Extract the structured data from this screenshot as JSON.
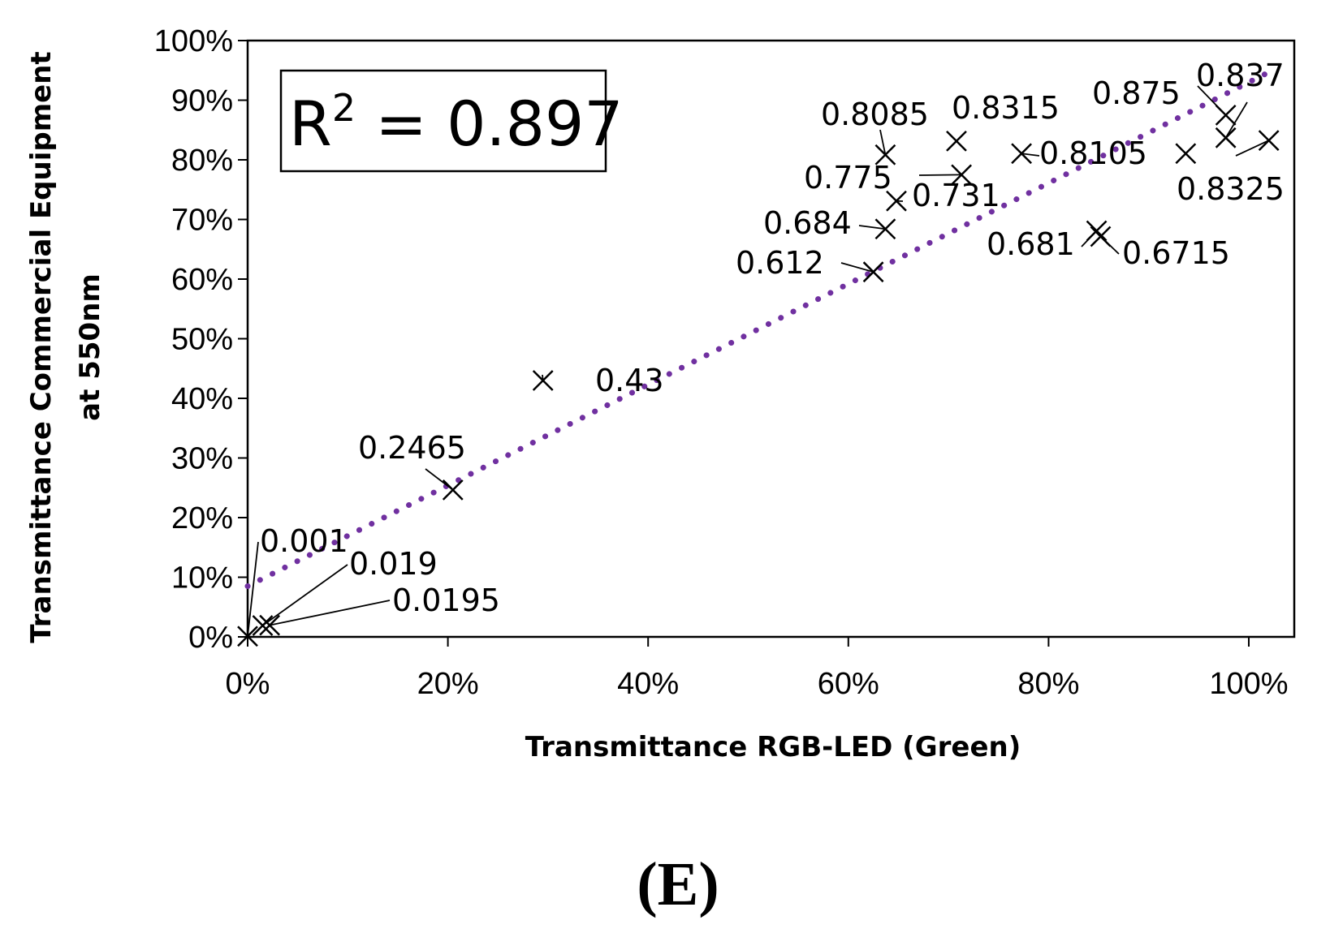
{
  "chart_data": {
    "type": "scatter",
    "xlabel": "Transmittance RGB-LED (Green)",
    "ylabel": [
      "Transmittance Commercial Equipment",
      "at 550nm"
    ],
    "xlim": [
      0,
      1.05
    ],
    "ylim": [
      0,
      1.0
    ],
    "xticks": [
      {
        "value": 0,
        "label": "0%"
      },
      {
        "value": 0.2,
        "label": "20%"
      },
      {
        "value": 0.4,
        "label": "40%"
      },
      {
        "value": 0.6,
        "label": "60%"
      },
      {
        "value": 0.8,
        "label": "80%"
      },
      {
        "value": 1.0,
        "label": "100%"
      }
    ],
    "yticks": [
      {
        "value": 0,
        "label": "0%"
      },
      {
        "value": 0.1,
        "label": "10%"
      },
      {
        "value": 0.2,
        "label": "20%"
      },
      {
        "value": 0.3,
        "label": "30%"
      },
      {
        "value": 0.4,
        "label": "40%"
      },
      {
        "value": 0.5,
        "label": "50%"
      },
      {
        "value": 0.6,
        "label": "60%"
      },
      {
        "value": 0.7,
        "label": "70%"
      },
      {
        "value": 0.8,
        "label": "80%"
      },
      {
        "value": 0.9,
        "label": "90%"
      },
      {
        "value": 1.0,
        "label": "100%"
      }
    ],
    "grid": false,
    "marker": "x",
    "points": [
      {
        "x": 0.0,
        "y": 0.001,
        "label": "0.001"
      },
      {
        "x": 0.015,
        "y": 0.019,
        "label": "0.019"
      },
      {
        "x": 0.022,
        "y": 0.0195,
        "label": "0.0195"
      },
      {
        "x": 0.205,
        "y": 0.2465,
        "label": "0.2465"
      },
      {
        "x": 0.295,
        "y": 0.43,
        "label": "0.43"
      },
      {
        "x": 0.625,
        "y": 0.612,
        "label": "0.612"
      },
      {
        "x": 0.637,
        "y": 0.684,
        "label": "0.684"
      },
      {
        "x": 0.637,
        "y": 0.8085,
        "label": "0.8085"
      },
      {
        "x": 0.648,
        "y": 0.731,
        "label": "0.731"
      },
      {
        "x": 0.708,
        "y": 0.8315,
        "label": "0.8315"
      },
      {
        "x": 0.713,
        "y": 0.775,
        "label": "0.775"
      },
      {
        "x": 0.773,
        "y": 0.8105,
        "label": "0.8105"
      },
      {
        "x": 0.848,
        "y": 0.681,
        "label": "0.681"
      },
      {
        "x": 0.852,
        "y": 0.6715,
        "label": "0.6715"
      },
      {
        "x": 0.937,
        "y": 0.8105,
        "label": ""
      },
      {
        "x": 0.977,
        "y": 0.875,
        "label": "0.875"
      },
      {
        "x": 0.977,
        "y": 0.837,
        "label": "0.837"
      },
      {
        "x": 1.02,
        "y": 0.8325,
        "label": "0.8325"
      }
    ],
    "trendline": {
      "style": "dotted",
      "color": "#7030a0",
      "x_range": [
        0,
        1.02
      ],
      "intercept": 0.085,
      "slope": 0.845
    },
    "r_squared_label": {
      "prefix": "R",
      "sup": "2",
      "text": " = 0.897"
    }
  },
  "caption": "(E)"
}
